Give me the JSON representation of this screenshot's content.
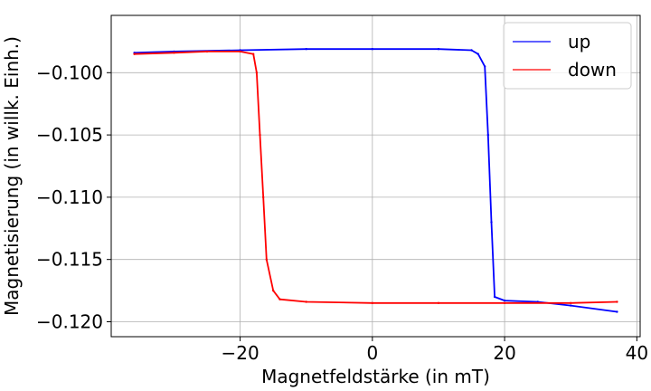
{
  "chart_data": {
    "type": "line",
    "title": "",
    "xlabel": "Magnetfeldstärke (in  mT)",
    "ylabel": "Magnetisierung (in willk. Einh.)",
    "xlim": [
      -39.5,
      40.5
    ],
    "ylim": [
      -0.1212,
      -0.0954
    ],
    "x_ticks": [
      -20,
      0,
      20,
      40
    ],
    "x_tick_labels": [
      "−20",
      "0",
      "20",
      "40"
    ],
    "y_ticks": [
      -0.1,
      -0.105,
      -0.11,
      -0.115,
      -0.12
    ],
    "y_tick_labels": [
      "−0.100",
      "−0.105",
      "−0.110",
      "−0.115",
      "−0.120"
    ],
    "grid": true,
    "legend_position": "top-right",
    "series": [
      {
        "name": "up",
        "color": "#0000ff",
        "x": [
          -36,
          -30,
          -20,
          -10,
          0,
          10,
          15,
          16,
          17,
          17.5,
          18,
          18.5,
          20,
          25,
          30,
          37
        ],
        "y": [
          -0.0984,
          -0.0983,
          -0.0982,
          -0.0981,
          -0.0981,
          -0.0981,
          -0.0982,
          -0.0985,
          -0.0995,
          -0.105,
          -0.112,
          -0.118,
          -0.1183,
          -0.1184,
          -0.1187,
          -0.1192
        ]
      },
      {
        "name": "down",
        "color": "#ff0000",
        "x": [
          37,
          30,
          20,
          10,
          0,
          -10,
          -14,
          -15,
          -16,
          -16.5,
          -17,
          -17.5,
          -18,
          -20,
          -25,
          -30,
          -36
        ],
        "y": [
          -0.1184,
          -0.1185,
          -0.1185,
          -0.1185,
          -0.1185,
          -0.1184,
          -0.1182,
          -0.1175,
          -0.115,
          -0.11,
          -0.105,
          -0.1,
          -0.0985,
          -0.0983,
          -0.0983,
          -0.0984,
          -0.0985
        ]
      }
    ]
  }
}
